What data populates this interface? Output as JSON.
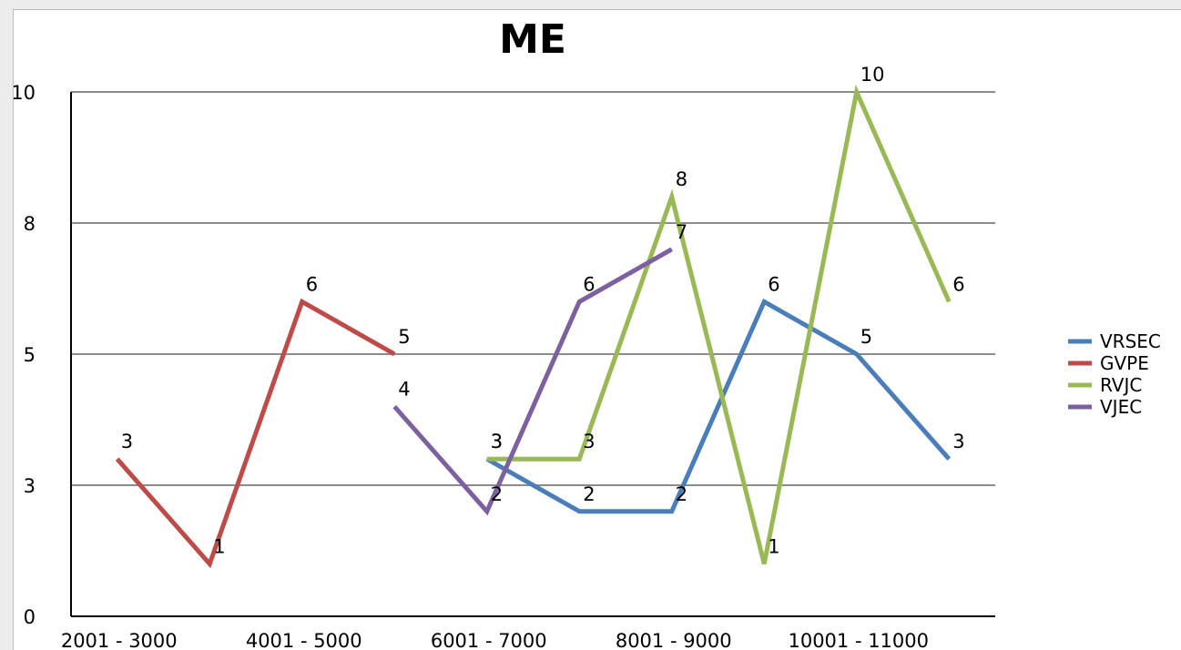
{
  "chart_data": {
    "type": "line",
    "title": "ME",
    "xlabel": "",
    "ylabel": "",
    "categories": [
      "2001 - 3000",
      "",
      "4001 - 5000",
      "",
      "6001 - 7000",
      "",
      "8001 - 9000",
      "",
      "10001 - 11000",
      ""
    ],
    "y_tick_labels": [
      "0",
      "3",
      "5",
      "8",
      "10"
    ],
    "ylim": [
      0,
      10
    ],
    "grid": true,
    "legend_position": "right",
    "series": [
      {
        "name": "VRSEC",
        "color": "#4a7ebb",
        "values": [
          null,
          null,
          null,
          null,
          3,
          2,
          2,
          6,
          5,
          3
        ],
        "labels": [
          null,
          null,
          null,
          null,
          "3",
          "2",
          "2",
          "6",
          "5",
          "3"
        ]
      },
      {
        "name": "GVPE",
        "color": "#be4b48",
        "values": [
          3,
          1,
          6,
          5,
          null,
          null,
          null,
          null,
          null,
          null
        ],
        "labels": [
          "3",
          "1",
          "6",
          "5",
          null,
          null,
          null,
          null,
          null,
          null
        ]
      },
      {
        "name": "RVJC",
        "color": "#98b954",
        "values": [
          null,
          null,
          null,
          null,
          3,
          3,
          8,
          1,
          10,
          6
        ],
        "labels": [
          null,
          null,
          null,
          null,
          "3",
          "3",
          "8",
          "1",
          "10",
          "6"
        ]
      },
      {
        "name": "VJEC",
        "color": "#7d60a0",
        "values": [
          null,
          null,
          null,
          4,
          2,
          6,
          7,
          null,
          null,
          null
        ],
        "labels": [
          null,
          null,
          null,
          "4",
          "2",
          "6",
          "7",
          null,
          null,
          null
        ]
      }
    ]
  }
}
